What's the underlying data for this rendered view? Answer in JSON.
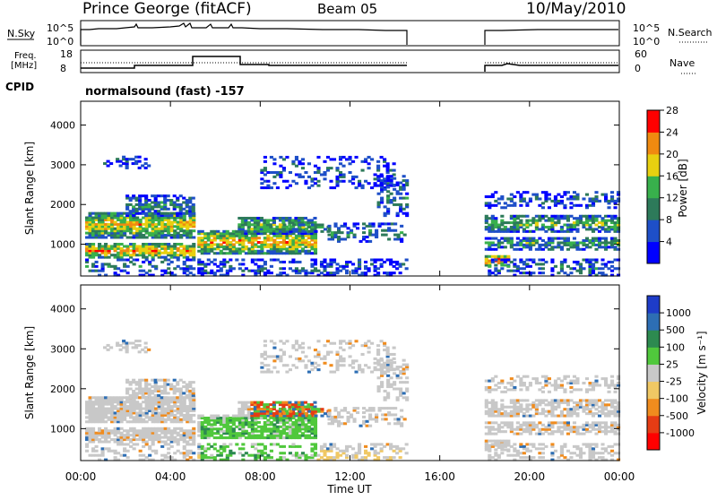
{
  "header": {
    "station": "Prince George (fitACF)",
    "beam": "Beam 05",
    "date": "10/May/2010"
  },
  "summary_panel": {
    "left_label_top": "N.Sky",
    "left_ticks": [
      "10^5",
      "10^0"
    ],
    "right_label": "N.Search",
    "right_ticks": [
      "10^5",
      "10^0"
    ]
  },
  "freq_panel": {
    "left_label_line1": "Freq.",
    "left_label_line2": "[MHz]",
    "left_ticks": [
      "18",
      "8"
    ],
    "right_label": "Nave",
    "right_ticks": [
      "60",
      "0"
    ]
  },
  "cpid": {
    "label": "CPID",
    "text": "normalsound (fast) -157"
  },
  "chart_data": [
    {
      "type": "heatmap",
      "name": "power",
      "ylabel": "Slant Range [km]",
      "xlabel": "",
      "x": [
        "00:00",
        "04:00",
        "08:00",
        "12:00",
        "16:00",
        "20:00",
        "00:00"
      ],
      "yticks": [
        1000,
        2000,
        3000,
        4000
      ],
      "colorbar": {
        "label": "Power [dB]",
        "ticks": [
          "4",
          "8",
          "12",
          "16",
          "20",
          "24",
          "28"
        ],
        "colors": [
          "#0000ff",
          "#1e4fc8",
          "#2d7a5a",
          "#38b04c",
          "#e8d010",
          "#f08a10",
          "#ff0000"
        ]
      }
    },
    {
      "type": "heatmap",
      "name": "velocity",
      "ylabel": "Slant Range [km]",
      "xlabel": "Time UT",
      "x": [
        "00:00",
        "04:00",
        "08:00",
        "12:00",
        "16:00",
        "20:00",
        "00:00"
      ],
      "yticks": [
        1000,
        2000,
        3000,
        4000
      ],
      "colorbar": {
        "label": "Velocity [m s⁻¹]",
        "ticks": [
          "1000",
          "500",
          "100",
          "25",
          "-25",
          "-100",
          "-500",
          "-1000"
        ],
        "colors": [
          "#1e3cc8",
          "#2d6eb4",
          "#2d8a50",
          "#50c83c",
          "#c8c8c8",
          "#f0c864",
          "#f08c1e",
          "#e63c14",
          "#ff0000"
        ]
      }
    }
  ]
}
